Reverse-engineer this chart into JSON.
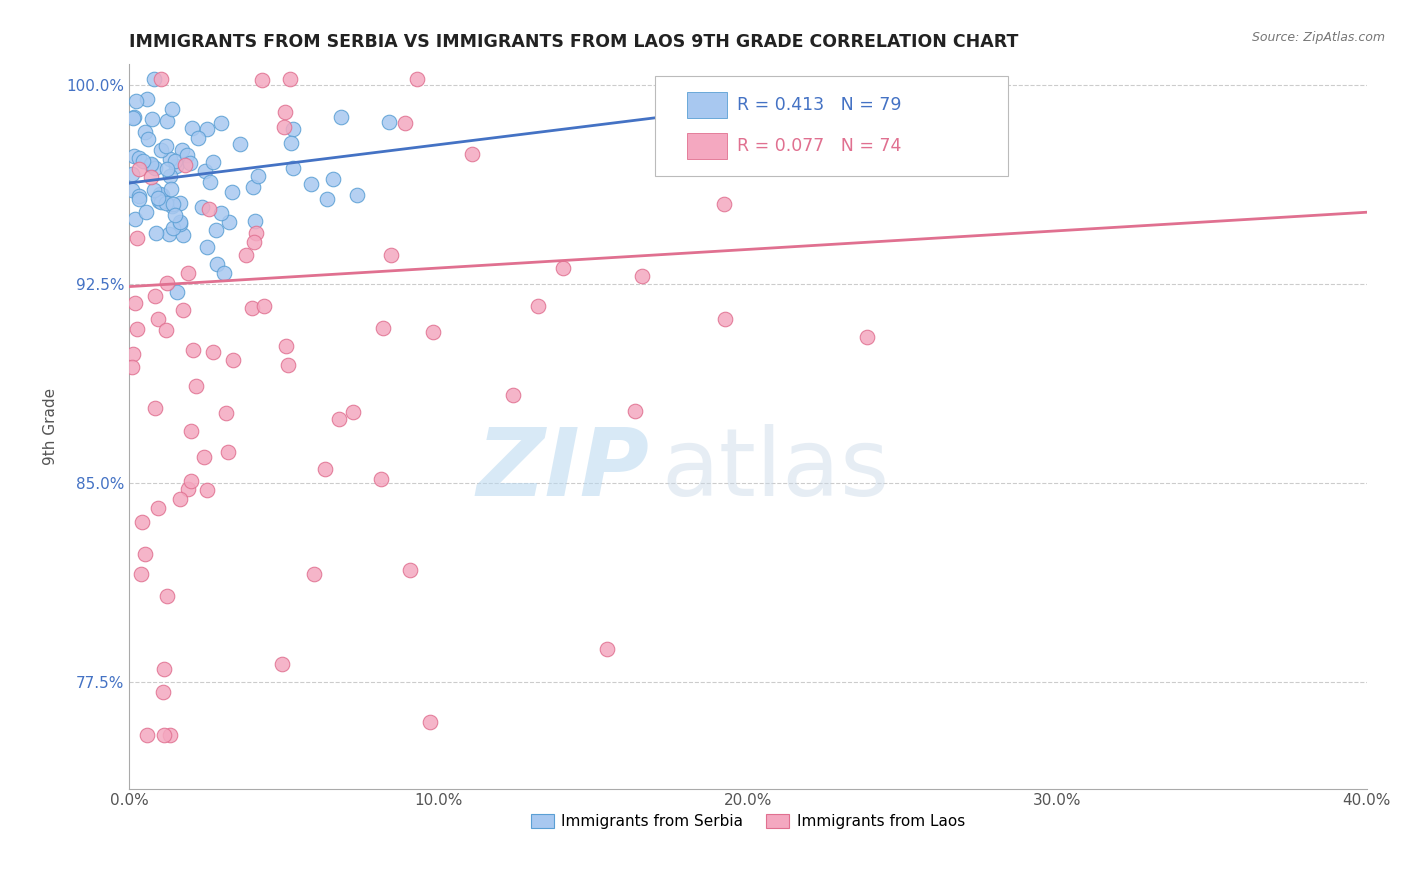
{
  "title": "IMMIGRANTS FROM SERBIA VS IMMIGRANTS FROM LAOS 9TH GRADE CORRELATION CHART",
  "source": "Source: ZipAtlas.com",
  "ylabel": "9th Grade",
  "xlim": [
    0.0,
    0.4
  ],
  "ylim": [
    0.735,
    1.008
  ],
  "xticks": [
    0.0,
    0.1,
    0.2,
    0.3,
    0.4
  ],
  "xticklabels": [
    "0.0%",
    "10.0%",
    "20.0%",
    "30.0%",
    "40.0%"
  ],
  "yticks": [
    0.775,
    0.85,
    0.925,
    1.0
  ],
  "yticklabels": [
    "77.5%",
    "85.0%",
    "92.5%",
    "100.0%"
  ],
  "serbia_color": "#A8C8F0",
  "serbia_edge": "#5A9FD4",
  "laos_color": "#F4A8C0",
  "laos_edge": "#E07090",
  "trendline_serbia_color": "#4472C4",
  "trendline_laos_color": "#E07090",
  "serbia_R": 0.413,
  "serbia_N": 79,
  "laos_R": 0.077,
  "laos_N": 74,
  "watermark_zip": "ZIP",
  "watermark_atlas": "atlas",
  "serbia_trend_x0": 0.0,
  "serbia_trend_y0": 0.963,
  "serbia_trend_x1": 0.27,
  "serbia_trend_y1": 1.002,
  "laos_trend_x0": 0.0,
  "laos_trend_y0": 0.924,
  "laos_trend_x1": 0.4,
  "laos_trend_y1": 0.952
}
